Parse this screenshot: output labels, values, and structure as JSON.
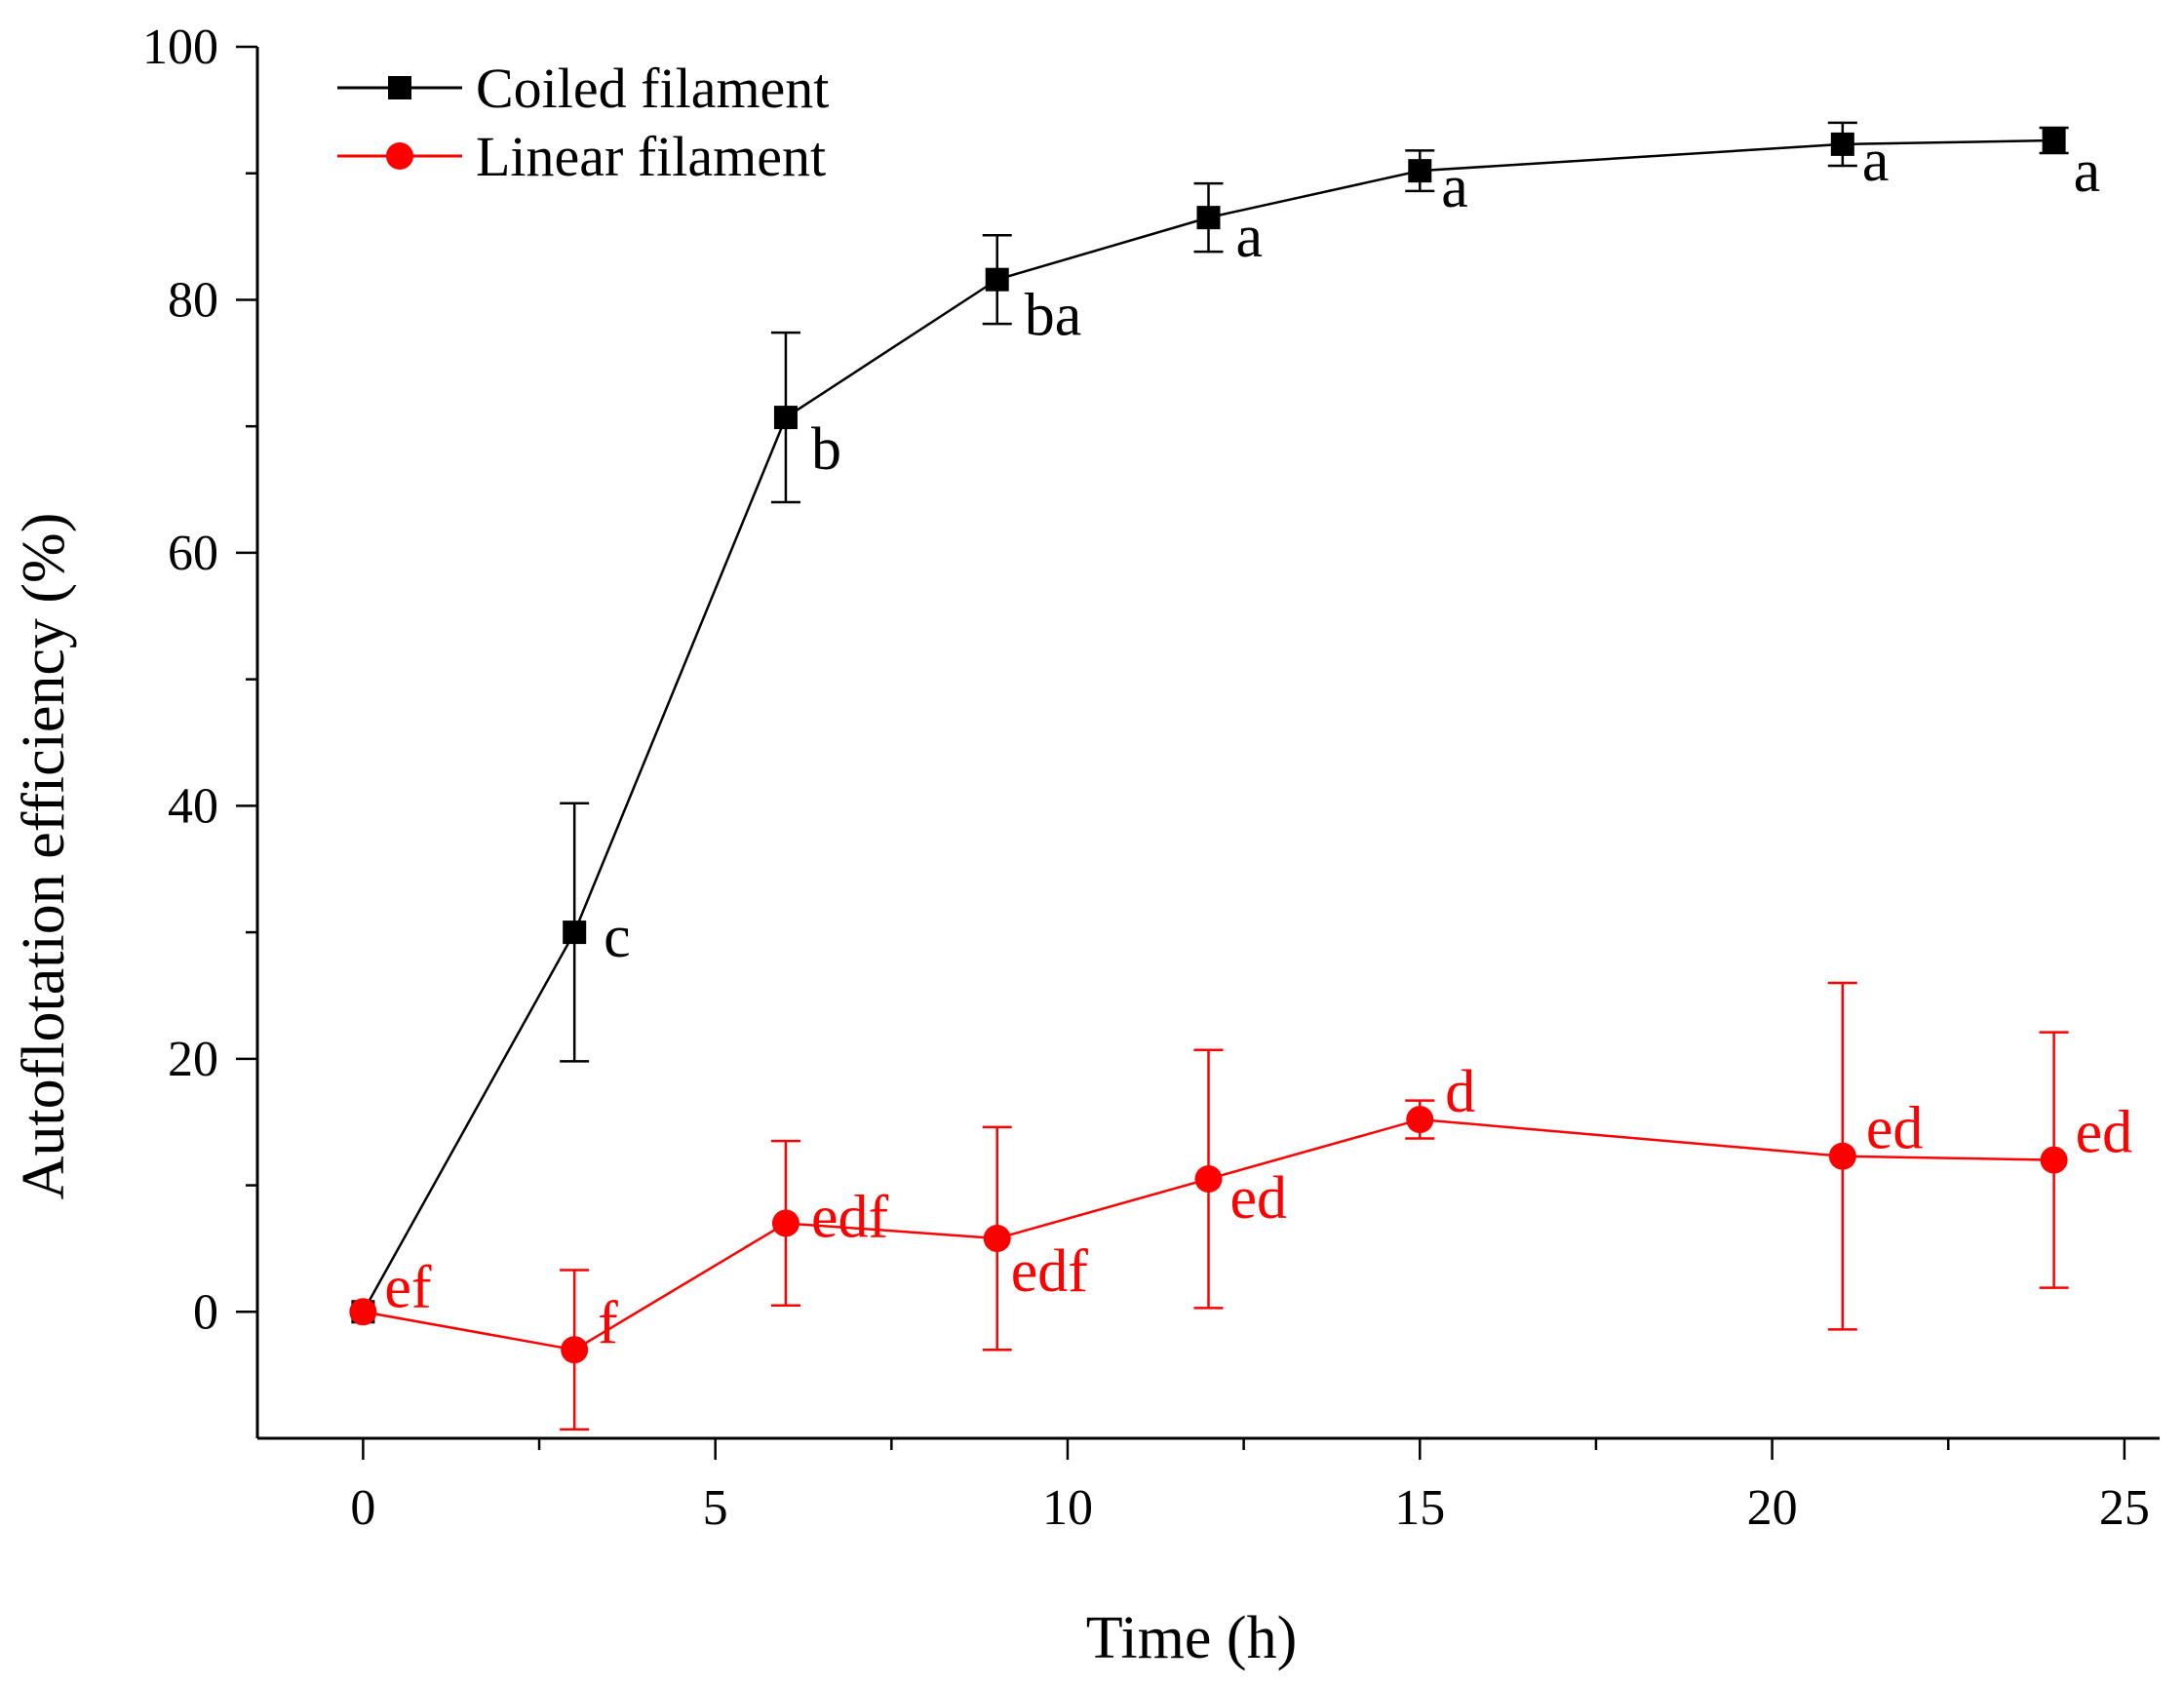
{
  "chart_data": {
    "type": "line",
    "xlabel": "Time (h)",
    "ylabel": "Autoflotation efficiency (%)",
    "xlim": [
      -1.5,
      25.5
    ],
    "ylim": [
      -10,
      100
    ],
    "xticks": [
      0,
      5,
      10,
      15,
      20,
      25
    ],
    "xticks_minor": [
      2.5,
      7.5,
      12.5,
      17.5,
      22.5
    ],
    "yticks": [
      0,
      20,
      40,
      60,
      80,
      100
    ],
    "yticks_minor": [
      10,
      30,
      50,
      70,
      90
    ],
    "xtick_labels": [
      "0",
      "5",
      "10",
      "15",
      "20",
      "25"
    ],
    "ytick_labels": [
      "0",
      "20",
      "40",
      "60",
      "80",
      "100"
    ],
    "legend_position": "top-left",
    "series": [
      {
        "name": "Coiled filament",
        "color": "#000000",
        "marker": "square",
        "x": [
          0,
          3,
          6,
          9,
          12,
          15,
          21,
          24
        ],
        "y": [
          0,
          30,
          70.7,
          81.6,
          86.5,
          90.2,
          92.3,
          92.6
        ],
        "err": [
          0,
          10.2,
          6.7,
          3.5,
          2.7,
          1.6,
          1.7,
          1.0
        ],
        "labels": [
          "",
          "c",
          "b",
          "ba",
          "a",
          "a",
          "a",
          "a"
        ]
      },
      {
        "name": "Linear filament",
        "color": "#ff0000",
        "marker": "circle",
        "x": [
          0,
          3,
          6,
          9,
          12,
          15,
          21,
          24
        ],
        "y": [
          0,
          -3,
          7,
          5.8,
          10.5,
          15.2,
          12.3,
          12
        ],
        "err": [
          0,
          6.3,
          6.5,
          8.8,
          10.2,
          1.5,
          13.7,
          10.1
        ],
        "labels": [
          "ef",
          "f",
          "edf",
          "edf",
          "ed",
          "d",
          "ed",
          "ed"
        ]
      }
    ]
  }
}
